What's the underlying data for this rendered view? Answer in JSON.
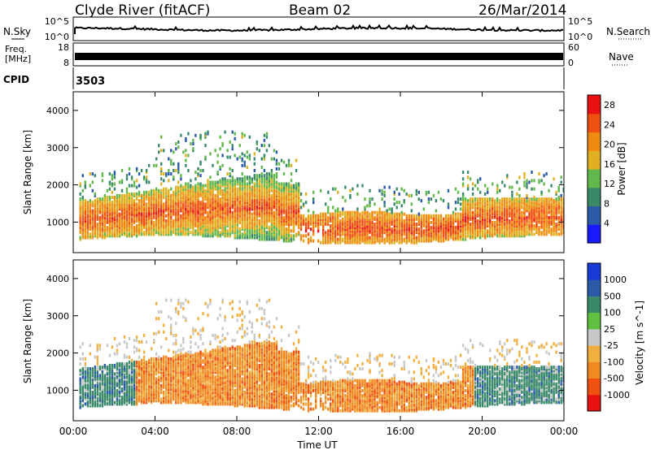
{
  "header": {
    "station": "Clyde River (fitACF)",
    "beam": "Beam 02",
    "date": "26/Mar/2014"
  },
  "noise_panel": {
    "left_label": "N.Sky",
    "left_ticks": [
      "10^5",
      "10^0"
    ],
    "right_label": "N.Search",
    "right_ticks": [
      "10^5",
      "10^0"
    ]
  },
  "freq_panel": {
    "left_label_line1": "Freq.",
    "left_label_line2": "[MHz]",
    "left_ticks": [
      "18",
      "8"
    ],
    "right_label": "Nave",
    "right_ticks": [
      "60",
      "0"
    ]
  },
  "cpid_panel": {
    "label": "CPID",
    "value": "3503"
  },
  "colors": {
    "power_scale": [
      "#1a1aff",
      "#2a5aa8",
      "#3a8a6a",
      "#62b84a",
      "#e0b020",
      "#f08a10",
      "#f05010",
      "#e81010"
    ],
    "velocity_scale": [
      "#e81010",
      "#f05010",
      "#f08a20",
      "#f0b040",
      "#c8c8c8",
      "#62c040",
      "#3a8a6a",
      "#2a5aa8",
      "#1a3ad8"
    ]
  },
  "chart_data": [
    {
      "type": "heatmap",
      "quantity": "Power",
      "ylabel": "Slant Range [km]",
      "xlabel": "",
      "x_ticks": [
        "00:00",
        "04:00",
        "08:00",
        "12:00",
        "16:00",
        "20:00",
        "00:00"
      ],
      "y_ticks": [
        1000,
        2000,
        3000,
        4000
      ],
      "ylim": [
        180,
        4500
      ],
      "colorbar_label": "Power [dB]",
      "colorbar_ticks": [
        4,
        8,
        12,
        16,
        20,
        24,
        28
      ],
      "colorbar_range": [
        0,
        30
      ]
    },
    {
      "type": "heatmap",
      "quantity": "Velocity",
      "ylabel": "Slant Range [km]",
      "xlabel": "Time UT",
      "x_ticks": [
        "00:00",
        "04:00",
        "08:00",
        "12:00",
        "16:00",
        "20:00",
        "00:00"
      ],
      "y_ticks": [
        1000,
        2000,
        3000,
        4000
      ],
      "ylim": [
        180,
        4500
      ],
      "colorbar_label": "Velocity [m s^-1]",
      "colorbar_ticks": [
        1000,
        500,
        100,
        25,
        -25,
        -100,
        -500,
        -1000
      ]
    }
  ]
}
